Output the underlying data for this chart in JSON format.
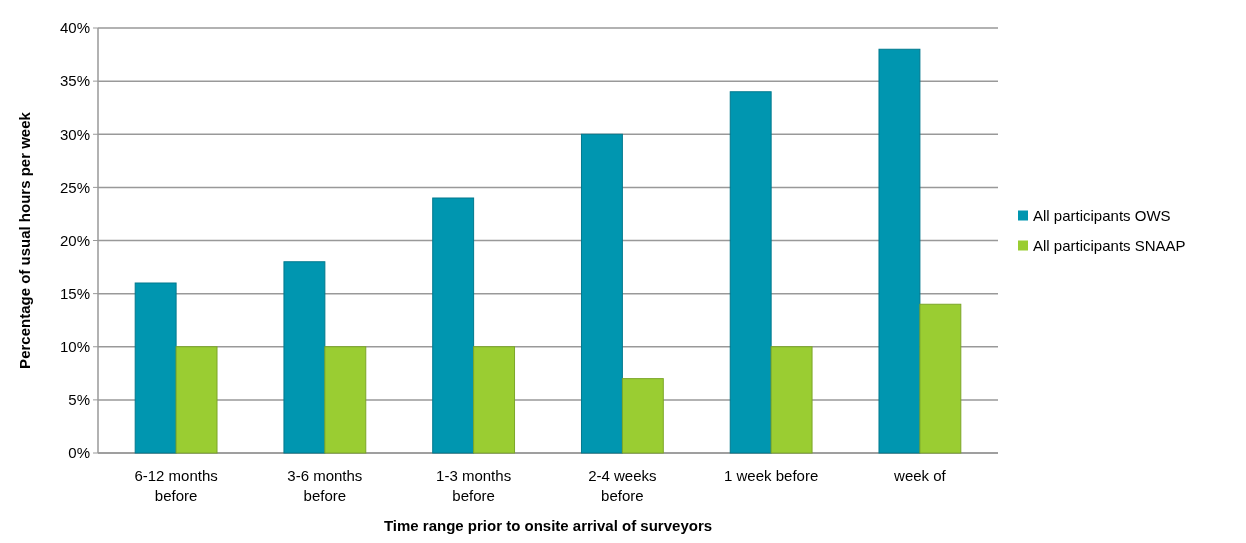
{
  "chart_data": {
    "type": "bar",
    "xlabel": "Time range prior to onsite arrival of surveyors",
    "ylabel": "Percentage of usual hours per week",
    "categories": [
      "6-12 months before",
      "3-6 months before",
      "1-3 months before",
      "2-4 weeks before",
      "1 week before",
      "week of"
    ],
    "series": [
      {
        "name": "All participants OWS",
        "color": "#0096b0",
        "values": [
          16,
          18,
          24,
          30,
          34,
          38
        ]
      },
      {
        "name": "All participants SNAAP",
        "color": "#9acd32",
        "values": [
          10,
          10,
          10,
          7,
          10,
          14
        ]
      }
    ],
    "ylim": [
      0,
      40
    ],
    "yticks": [
      {
        "value": 0,
        "label": "0%"
      },
      {
        "value": 5,
        "label": "5%"
      },
      {
        "value": 10,
        "label": "10%"
      },
      {
        "value": 15,
        "label": "15%"
      },
      {
        "value": 20,
        "label": "20%"
      },
      {
        "value": 25,
        "label": "25%"
      },
      {
        "value": 30,
        "label": "30%"
      },
      {
        "value": 35,
        "label": "35%"
      },
      {
        "value": 40,
        "label": "40%"
      }
    ],
    "grid": "y",
    "legend": "right"
  }
}
